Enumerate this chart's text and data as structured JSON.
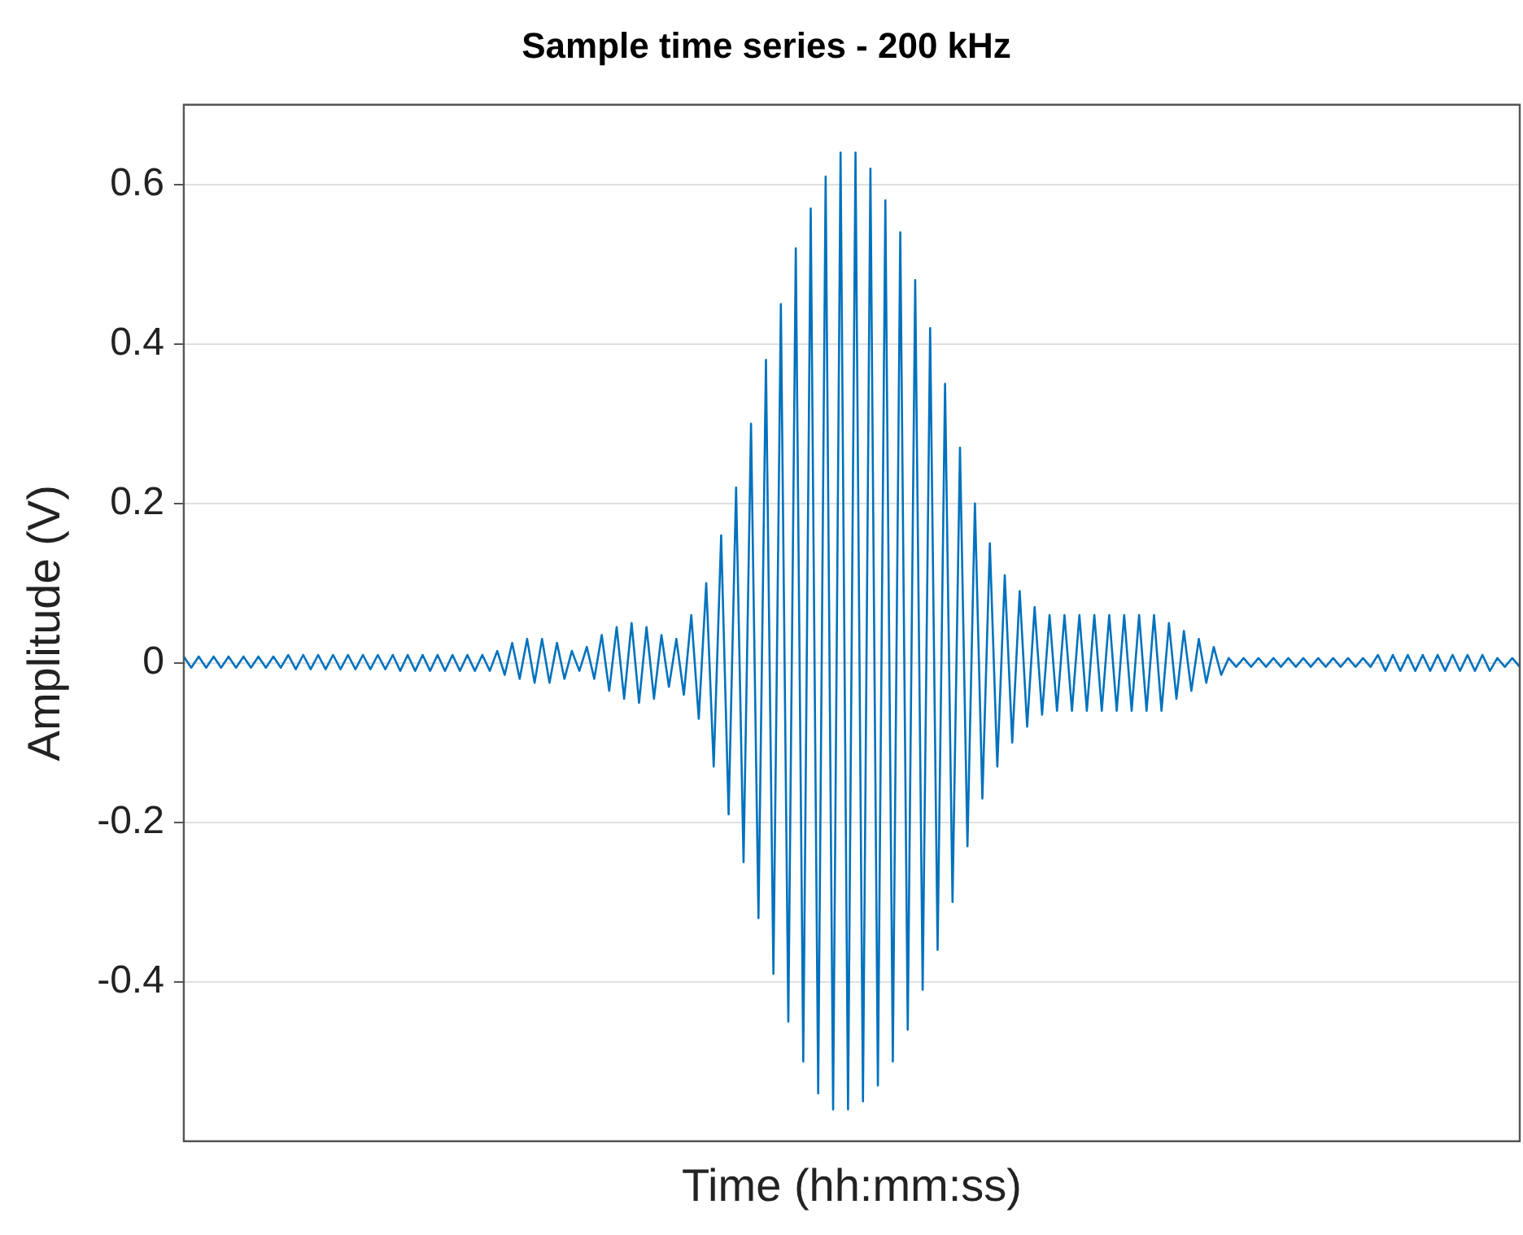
{
  "chart_data": {
    "type": "line",
    "title": "Sample time series - 200 kHz",
    "xlabel": "Time (hh:mm:ss)",
    "ylabel": "Amplitude (V)",
    "categories": [
      null,
      null,
      null,
      null,
      null,
      null,
      null,
      null,
      null,
      null,
      null,
      null,
      null,
      null,
      null,
      null,
      null,
      null,
      null,
      null,
      null,
      null,
      null,
      null,
      null,
      null,
      null,
      null,
      null,
      null,
      null,
      null,
      null,
      null,
      null,
      null,
      null,
      null,
      null,
      null,
      null,
      null,
      null,
      null,
      null,
      null,
      null,
      null,
      null,
      null,
      null,
      null,
      null,
      null,
      null,
      null,
      null,
      null,
      null,
      null,
      null,
      null,
      null,
      null,
      null,
      null,
      null,
      null,
      null,
      null,
      null,
      null,
      null,
      null,
      null,
      null,
      null,
      null,
      null,
      null,
      null,
      null,
      null,
      null,
      null,
      null,
      null,
      null,
      null,
      null,
      null,
      null,
      null,
      null,
      null,
      null,
      null,
      null,
      null,
      null,
      null,
      null,
      null,
      null,
      null,
      null,
      null,
      null,
      null,
      null,
      null,
      null,
      null,
      null,
      null,
      null,
      null,
      null,
      null,
      null,
      null,
      null,
      null,
      null,
      null,
      null,
      null,
      null,
      null,
      null,
      null,
      null,
      null,
      null,
      null,
      null,
      null,
      null,
      null,
      null,
      null,
      null,
      null,
      null,
      null,
      null,
      null,
      null,
      null,
      null,
      null,
      null,
      null,
      null,
      null,
      null,
      null,
      null,
      null,
      null,
      null,
      null,
      null,
      null,
      null,
      null,
      null,
      null,
      null,
      null,
      null,
      null,
      null,
      null,
      null,
      null,
      null,
      null,
      null,
      null
    ],
    "series": [
      {
        "color": "#0072bd",
        "values": [
          0.008,
          -0.006,
          0.008,
          -0.006,
          0.008,
          -0.006,
          0.008,
          -0.006,
          0.008,
          -0.006,
          0.008,
          -0.006,
          0.008,
          -0.006,
          0.01,
          -0.008,
          0.01,
          -0.008,
          0.01,
          -0.008,
          0.01,
          -0.008,
          0.01,
          -0.008,
          0.01,
          -0.008,
          0.01,
          -0.008,
          0.01,
          -0.01,
          0.01,
          -0.01,
          0.01,
          -0.01,
          0.01,
          -0.01,
          0.01,
          -0.01,
          0.01,
          -0.01,
          0.01,
          -0.01,
          0.015,
          -0.015,
          0.025,
          -0.02,
          0.03,
          -0.025,
          0.03,
          -0.025,
          0.025,
          -0.02,
          0.015,
          -0.01,
          0.02,
          -0.02,
          0.035,
          -0.035,
          0.045,
          -0.045,
          0.05,
          -0.05,
          0.045,
          -0.045,
          0.035,
          -0.03,
          0.03,
          -0.04,
          0.06,
          -0.07,
          0.1,
          -0.13,
          0.16,
          -0.19,
          0.22,
          -0.25,
          0.3,
          -0.32,
          0.38,
          -0.39,
          0.45,
          -0.45,
          0.52,
          -0.5,
          0.57,
          -0.54,
          0.61,
          -0.56,
          0.64,
          -0.56,
          0.64,
          -0.55,
          0.62,
          -0.53,
          0.58,
          -0.5,
          0.54,
          -0.46,
          0.48,
          -0.41,
          0.42,
          -0.36,
          0.35,
          -0.3,
          0.27,
          -0.23,
          0.2,
          -0.17,
          0.15,
          -0.13,
          0.11,
          -0.1,
          0.09,
          -0.08,
          0.07,
          -0.065,
          0.06,
          -0.06,
          0.06,
          -0.06,
          0.06,
          -0.06,
          0.06,
          -0.06,
          0.06,
          -0.06,
          0.06,
          -0.06,
          0.06,
          -0.06,
          0.06,
          -0.06,
          0.05,
          -0.045,
          0.04,
          -0.035,
          0.03,
          -0.025,
          0.02,
          -0.015,
          0.006,
          -0.005,
          0.006,
          -0.005,
          0.006,
          -0.005,
          0.006,
          -0.005,
          0.006,
          -0.005,
          0.006,
          -0.005,
          0.006,
          -0.005,
          0.006,
          -0.005,
          0.006,
          -0.005,
          0.006,
          -0.005,
          0.01,
          -0.01,
          0.01,
          -0.01,
          0.01,
          -0.01,
          0.01,
          -0.01,
          0.01,
          -0.01,
          0.01,
          -0.01,
          0.01,
          -0.01,
          0.01,
          -0.01,
          0.006,
          -0.005,
          0.006,
          -0.005
        ]
      }
    ],
    "ylim": [
      -0.6,
      0.7
    ],
    "yticks": [
      -0.4,
      -0.2,
      0,
      0.2,
      0.4,
      0.6
    ],
    "grid": "y",
    "legend": false,
    "tick_labels": "y",
    "marker": "none",
    "line_style": "solid"
  }
}
